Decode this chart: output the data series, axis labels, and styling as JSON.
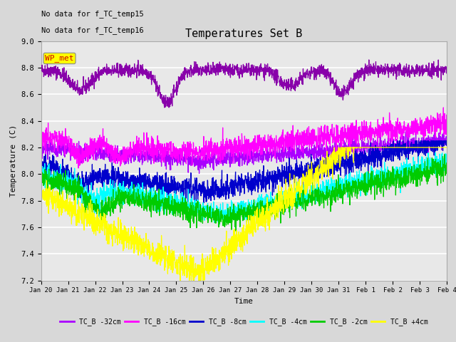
{
  "title": "Temperatures Set B",
  "xlabel": "Time",
  "ylabel": "Temperature (C)",
  "ylim": [
    7.2,
    9.0
  ],
  "xlim_days": 15.5,
  "text_nodata1": "No data for f_TC_temp15",
  "text_nodata2": "No data for f_TC_temp16",
  "wp_met_label": "WP_met",
  "wp_met_color": "#cc0000",
  "wp_met_bg": "#ffff00",
  "wp_met_line_color": "#8800aa",
  "xtick_labels": [
    "Jan 20",
    "Jan 21",
    "Jan 22",
    "Jan 23",
    "Jan 24",
    "Jan 25",
    "Jan 26",
    "Jan 27",
    "Jan 28",
    "Jan 29",
    "Jan 30",
    "Jan 31",
    "Feb 1",
    "Feb 2",
    "Feb 3",
    "Feb 4"
  ],
  "legend_entries": [
    "TC_B -32cm",
    "TC_B -16cm",
    "TC_B -8cm",
    "TC_B -4cm",
    "TC_B -2cm",
    "TC_B +4cm"
  ],
  "line_colors": [
    "#aa00ff",
    "#ff00ff",
    "#0000cc",
    "#00ffff",
    "#00cc00",
    "#ffff00"
  ],
  "background_color": "#d8d8d8",
  "plot_bg": "#e8e8e8",
  "grid_color": "#ffffff",
  "yticks": [
    7.2,
    7.4,
    7.6,
    7.8,
    8.0,
    8.2,
    8.4,
    8.6,
    8.8,
    9.0
  ]
}
